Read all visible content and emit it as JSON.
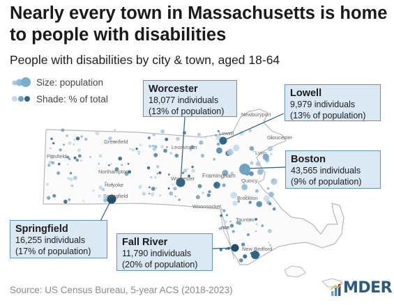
{
  "title": "Nearly every town in Massachusetts is home to people with disabilities",
  "subtitle": "People with disabilities by city & town, aged 18-64",
  "legend": {
    "size_label": "Size: population",
    "shade_label": "Shade: % of total"
  },
  "map_labels": {
    "pittsfield": "Pittsfield",
    "greenfield": "Greenfield",
    "northampton": "Northampton",
    "holyoke": "Holyoke",
    "springfield": "Springfield",
    "leominster": "Leominster",
    "worcester": "Worcester",
    "framingham": "Framingham",
    "woonsocket": "Woonsocket",
    "lowell": "Lowell",
    "newburyport": "Newburyport",
    "gloucester": "Gloucester",
    "lynn": "Lynn",
    "quincy": "Quincy",
    "brockton": "Brockton",
    "taunton": "Taunton",
    "providence": "nce",
    "new_bedford": "New Bedford"
  },
  "callouts": [
    {
      "name": "Worcester",
      "individuals": "18,077 individuals",
      "pct": "(13% of population)"
    },
    {
      "name": "Lowell",
      "individuals": "9,979 individuals",
      "pct": "(13% of population)"
    },
    {
      "name": "Boston",
      "individuals": "43,565 individuals",
      "pct": "(9% of population)"
    },
    {
      "name": "Springfield",
      "individuals": "16,255 individuals",
      "pct": "(17% of population)"
    },
    {
      "name": "Fall River",
      "individuals": "11,790 individuals",
      "pct": "(20% of population)"
    }
  ],
  "source": "Source: US Census Bureau, 5-year ACS (2018-2023)",
  "logo_text": "MDER",
  "colors": {
    "light_dot": "#a9cbe0",
    "mid_dot": "#6fa3c4",
    "dark_dot": "#2f6688",
    "darkest_dot": "#1d4f6e",
    "callout_bg": "#dbe9f4",
    "callout_border": "#5e95bd",
    "state_outline": "#b8b8b8"
  }
}
